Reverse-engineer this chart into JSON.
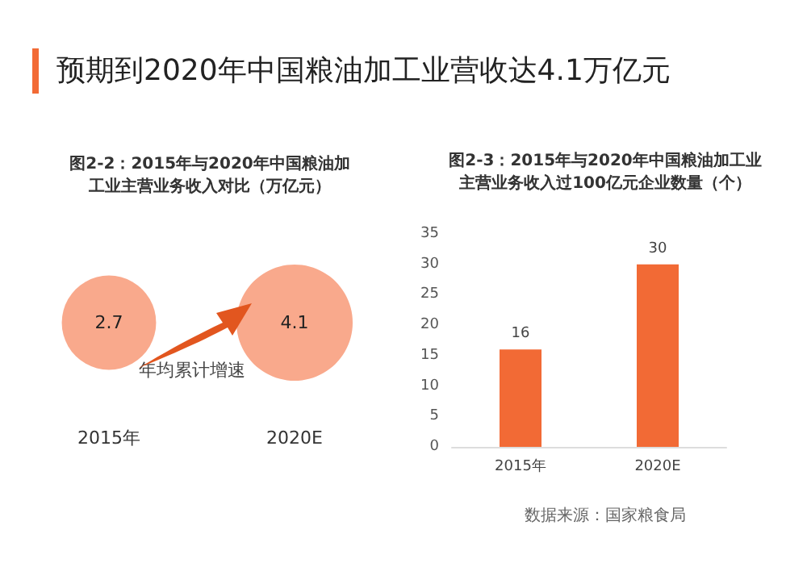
{
  "chart_data": [
    {
      "type": "other",
      "title": "预期到2020年中国粮油加工业营收达4.1万亿元",
      "subtitle": "图2-2：2015年与2020年中国粮油加工业主营业务收入对比（万亿元）",
      "categories": [
        "2015年",
        "2020E"
      ],
      "values": [
        2.7,
        4.1
      ],
      "color": "#f9a98c",
      "data_labels": true,
      "annotations": [
        "年均累计增速"
      ]
    },
    {
      "type": "bar",
      "title": "图2-3：2015年与2020年中国粮油加工业主营业务收入过100亿元企业数量（个）",
      "categories": [
        "2015年",
        "2020E"
      ],
      "values": [
        16,
        30
      ],
      "color": "#f26a35",
      "ylim": [
        0,
        35
      ],
      "yticks": [
        0,
        5,
        10,
        15,
        20,
        25,
        30,
        35
      ],
      "data_labels": true,
      "annotations": [
        "数据来源：国家粮食局"
      ]
    }
  ]
}
